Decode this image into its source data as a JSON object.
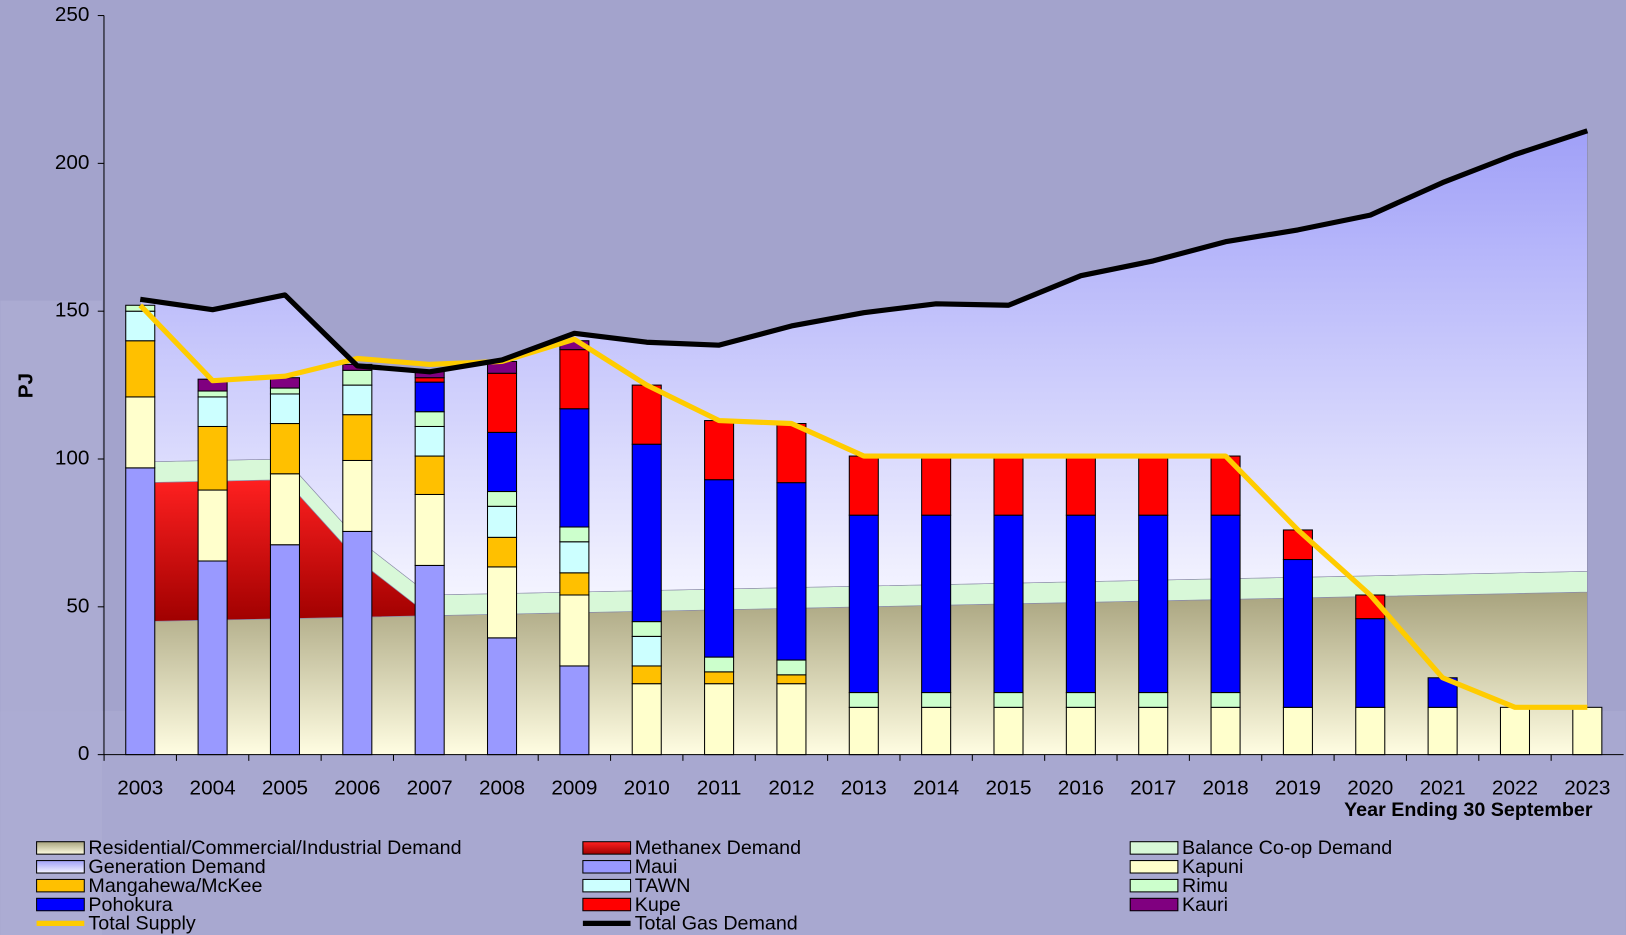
{
  "chart_data": {
    "type": "combo",
    "ylabel": "PJ",
    "xlabel": "Year Ending 30 September",
    "categories": [
      "2003",
      "2004",
      "2005",
      "2006",
      "2007",
      "2008",
      "2009",
      "2010",
      "2011",
      "2012",
      "2013",
      "2014",
      "2015",
      "2016",
      "2017",
      "2018",
      "2019",
      "2020",
      "2021",
      "2022",
      "2023"
    ],
    "ylim": [
      0,
      250
    ],
    "yticks": [
      0,
      50,
      100,
      150,
      200,
      250
    ],
    "series": [
      {
        "name": "Residential/Commercial/Industrial Demand",
        "type": "area",
        "colors": [
          "#a8a37e",
          "#fffde2"
        ],
        "values": [
          45,
          45.5,
          46,
          46.5,
          47,
          47.5,
          48,
          48.5,
          49,
          49.5,
          50,
          50.5,
          51,
          51.5,
          52,
          52.5,
          53,
          53.5,
          54,
          54.5,
          55
        ]
      },
      {
        "name": "Methanex Demand",
        "type": "area",
        "colors": [
          "#ff2020",
          "#a00000"
        ],
        "values": [
          47,
          47,
          47,
          19.5,
          0,
          0,
          0,
          0,
          0,
          0,
          0,
          0,
          0,
          0,
          0,
          0,
          0,
          0,
          0,
          0,
          0
        ]
      },
      {
        "name": "Balance Co-op Demand",
        "type": "area",
        "colors": [
          "#d8f8d8",
          "#d8f8d8"
        ],
        "values": [
          7,
          7,
          7,
          7,
          7,
          7,
          7,
          7,
          7,
          7,
          7,
          7,
          7,
          7,
          7,
          7,
          7,
          7,
          7,
          7,
          7
        ]
      },
      {
        "name": "Generation Demand",
        "type": "area",
        "colors": [
          "#a0a0f8",
          "#f4f4ff"
        ],
        "values": [
          55,
          51,
          55.5,
          58.5,
          75.5,
          79,
          87.5,
          84,
          82.5,
          88.5,
          92.5,
          95,
          94,
          103.5,
          108,
          114,
          117.5,
          122,
          132.5,
          141.5,
          149
        ]
      },
      {
        "name": "Maui",
        "type": "bar",
        "color": "#9999ff",
        "values": [
          97,
          65.5,
          71,
          75.5,
          64,
          39.5,
          30,
          0,
          0,
          0,
          0,
          0,
          0,
          0,
          0,
          0,
          0,
          0,
          0,
          0,
          0
        ]
      },
      {
        "name": "Kapuni",
        "type": "bar",
        "color": "#ffffcc",
        "values": [
          24,
          24,
          24,
          24,
          24,
          24,
          24,
          24,
          24,
          24,
          16,
          16,
          16,
          16,
          16,
          16,
          16,
          16,
          16,
          16,
          16
        ]
      },
      {
        "name": "Mangahewa/McKee",
        "type": "bar",
        "color": "#ffc000",
        "values": [
          19,
          21.5,
          17,
          15.5,
          13,
          10,
          7.5,
          6,
          4,
          3,
          0,
          0,
          0,
          0,
          0,
          0,
          0,
          0,
          0,
          0,
          0
        ]
      },
      {
        "name": "TAWN",
        "type": "bar",
        "color": "#ccffff",
        "values": [
          10,
          10,
          10,
          10,
          10,
          10.5,
          10.5,
          10,
          0,
          0,
          0,
          0,
          0,
          0,
          0,
          0,
          0,
          0,
          0,
          0,
          0
        ]
      },
      {
        "name": "Rimu",
        "type": "bar",
        "color": "#ccffcc",
        "values": [
          2,
          2,
          2,
          5,
          5,
          5,
          5,
          5,
          5,
          5,
          5,
          5,
          5,
          5,
          5,
          5,
          0,
          0,
          0,
          0,
          0
        ]
      },
      {
        "name": "Pohokura",
        "type": "bar",
        "color": "#0000ff",
        "values": [
          0,
          0,
          0,
          0,
          10,
          20,
          40,
          60,
          60,
          60,
          60,
          60,
          60,
          60,
          60,
          60,
          50,
          30,
          10,
          0,
          0
        ]
      },
      {
        "name": "Kupe",
        "type": "bar",
        "color": "#ff0000",
        "values": [
          0,
          0,
          0,
          0,
          1.5,
          20,
          20,
          20,
          20,
          20,
          20,
          20,
          20,
          20,
          20,
          20,
          10,
          8,
          0,
          0,
          0
        ]
      },
      {
        "name": "Kauri",
        "type": "bar",
        "color": "#800080",
        "values": [
          0,
          4,
          3.5,
          2,
          2.5,
          4,
          3,
          0,
          0,
          0,
          0,
          0,
          0,
          0,
          0,
          0,
          0,
          0,
          0,
          0,
          0
        ]
      },
      {
        "name": "Total Supply",
        "type": "line",
        "color": "#ffcc00",
        "values": [
          152,
          126.5,
          128,
          134,
          132,
          133,
          140.5,
          125,
          113,
          112,
          101,
          101,
          101,
          101,
          101,
          101,
          76,
          54,
          26,
          16,
          16
        ]
      },
      {
        "name": "Total Gas Demand",
        "type": "line",
        "color": "#000000",
        "values": [
          154,
          150.5,
          155.5,
          131.5,
          129.5,
          133.5,
          142.5,
          139.5,
          138.5,
          145,
          149.5,
          152.5,
          152,
          162,
          167,
          173.5,
          177.5,
          182.5,
          193.5,
          203,
          211
        ]
      }
    ]
  }
}
